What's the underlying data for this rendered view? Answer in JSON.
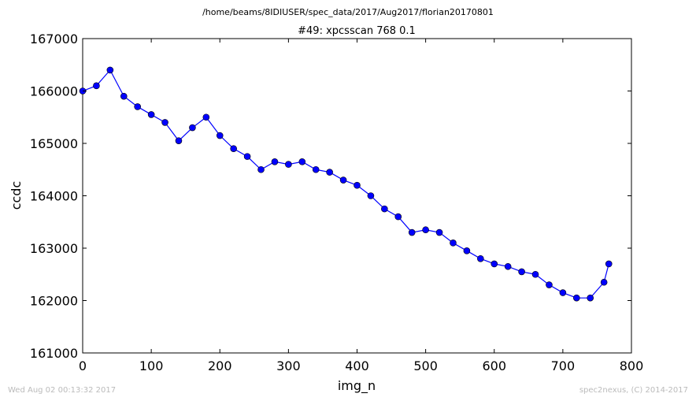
{
  "header": {
    "suptitle": "/home/beams/8IDIUSER/spec_data/2017/Aug2017/florian20170801",
    "title": "#49: xpcsscan 768 0.1"
  },
  "footer": {
    "timestamp": "Wed Aug 02 00:13:32 2017",
    "credit": "spec2nexus, (C) 2014-2017"
  },
  "chart_data": {
    "type": "line",
    "title": "#49: xpcsscan 768 0.1",
    "xlabel": "img_n",
    "ylabel": "ccdc",
    "xlim": [
      0,
      800
    ],
    "ylim": [
      161000,
      167000
    ],
    "xticks": [
      0,
      100,
      200,
      300,
      400,
      500,
      600,
      700,
      800
    ],
    "yticks": [
      161000,
      162000,
      163000,
      164000,
      165000,
      166000,
      167000
    ],
    "xtick_labels": [
      "0",
      "100",
      "200",
      "300",
      "400",
      "500",
      "600",
      "700",
      "800"
    ],
    "ytick_labels": [
      "161000",
      "162000",
      "163000",
      "164000",
      "165000",
      "166000",
      "167000"
    ],
    "grid": false,
    "series_color": "#0000ff",
    "series": [
      {
        "x": [
          0,
          20,
          40,
          60,
          80,
          100,
          120,
          140,
          160,
          180,
          200,
          220,
          240,
          260,
          280,
          300,
          320,
          340,
          360,
          380,
          400,
          420,
          440,
          460,
          480,
          500,
          520,
          540,
          560,
          580,
          600,
          620,
          640,
          660,
          680,
          700,
          720,
          740,
          760,
          767
        ],
        "values": [
          166000,
          166100,
          166400,
          165900,
          165700,
          165550,
          165400,
          165050,
          165300,
          165500,
          165150,
          164900,
          164750,
          164500,
          164650,
          164600,
          164650,
          164500,
          164450,
          164300,
          164200,
          164000,
          163750,
          163600,
          163300,
          163350,
          163300,
          163100,
          162950,
          162800,
          162700,
          162650,
          162550,
          162500,
          162300,
          162150,
          162050,
          162050,
          162350,
          162700
        ],
        "marker": "circle"
      }
    ]
  }
}
